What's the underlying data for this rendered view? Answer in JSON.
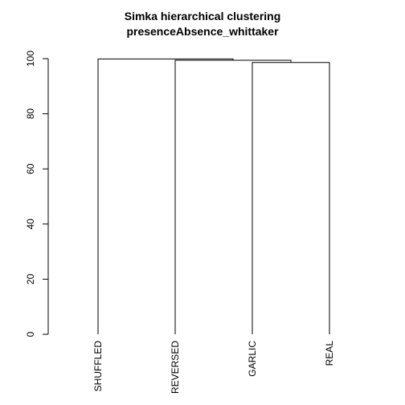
{
  "chart_data": {
    "type": "dendrogram",
    "title": [
      "Simka hierarchical clustering",
      "presenceAbsence_whittaker"
    ],
    "ylim": [
      0,
      100
    ],
    "y_ticks": [
      0,
      20,
      40,
      60,
      80,
      100
    ],
    "leaves": [
      "SHUFFLED",
      "REVERSED",
      "GARLIC",
      "REAL"
    ],
    "merges": [
      {
        "a": "GARLIC",
        "b": "REAL",
        "height": 98.6
      },
      {
        "a": "REVERSED",
        "b": "GARLIC+REAL",
        "height": 99.4
      },
      {
        "a": "SHUFFLED",
        "b": "REVERSED+GARLIC+REAL",
        "height": 99.9
      }
    ],
    "colors": {
      "line": "#000000",
      "background": "#ffffff"
    }
  }
}
